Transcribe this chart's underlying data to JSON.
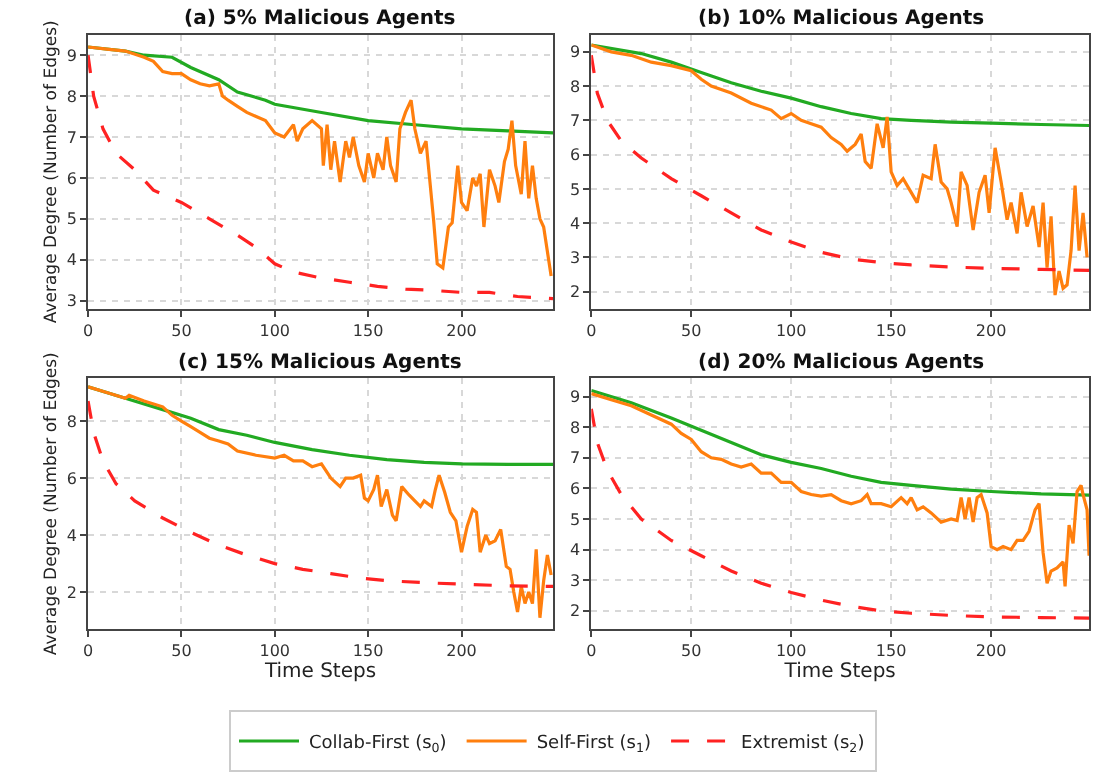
{
  "chart_data": [
    {
      "type": "line",
      "title": "(a) 5% Malicious Agents",
      "ylabel": "Average Degree (Number of Edges)",
      "xlim": [
        0,
        249
      ],
      "xticks": [
        0,
        50,
        100,
        150,
        200
      ],
      "ylim": [
        2.8,
        9.5
      ],
      "yticks": [
        3,
        4,
        5,
        6,
        7,
        8,
        9
      ],
      "grid": true,
      "legend": "bottom",
      "marker": "none",
      "series": [
        {
          "name": "Collab-First (s$_{0}$)",
          "color": "#22aa22",
          "line_style": "solid",
          "x": [
            0,
            20,
            30,
            45,
            55,
            70,
            80,
            95,
            100,
            125,
            150,
            175,
            200,
            225,
            249
          ],
          "values": [
            9.2,
            9.1,
            9.0,
            8.95,
            8.7,
            8.4,
            8.1,
            7.9,
            7.8,
            7.6,
            7.4,
            7.3,
            7.2,
            7.15,
            7.1
          ]
        },
        {
          "name": "Self-First (s$_{1}$)",
          "color": "#ff7f0e",
          "line_style": "solid",
          "x": [
            0,
            10,
            20,
            30,
            35,
            40,
            45,
            50,
            55,
            60,
            65,
            70,
            72,
            75,
            80,
            85,
            90,
            95,
            100,
            105,
            110,
            112,
            115,
            120,
            125,
            126,
            128,
            130,
            132,
            135,
            138,
            140,
            142,
            145,
            148,
            150,
            153,
            155,
            158,
            160,
            162,
            165,
            167,
            170,
            173,
            175,
            178,
            181,
            185,
            187,
            190,
            193,
            195,
            198,
            200,
            203,
            206,
            208,
            210,
            212,
            215,
            218,
            220,
            223,
            225,
            227,
            229,
            232,
            234,
            236,
            238,
            240,
            242,
            244,
            246,
            248
          ],
          "values": [
            9.2,
            9.15,
            9.1,
            8.95,
            8.85,
            8.6,
            8.55,
            8.55,
            8.4,
            8.3,
            8.25,
            8.3,
            8.0,
            7.9,
            7.75,
            7.6,
            7.5,
            7.4,
            7.1,
            7.0,
            7.3,
            6.9,
            7.2,
            7.4,
            7.2,
            6.3,
            7.3,
            6.2,
            6.9,
            5.9,
            6.9,
            6.5,
            7.0,
            6.3,
            5.9,
            6.6,
            6.0,
            6.6,
            6.2,
            7.0,
            6.3,
            5.9,
            7.2,
            7.6,
            7.9,
            7.2,
            6.6,
            6.9,
            5.0,
            3.9,
            3.8,
            4.8,
            4.9,
            6.3,
            5.4,
            5.2,
            6.0,
            5.8,
            6.1,
            4.8,
            6.2,
            5.8,
            5.4,
            6.4,
            6.7,
            7.4,
            6.3,
            5.6,
            6.9,
            5.5,
            6.3,
            5.5,
            5.0,
            4.8,
            4.2,
            3.6
          ]
        },
        {
          "name": "Extremist (s$_{2}$)",
          "color": "#ff2222",
          "line_style": "dashed",
          "x": [
            0,
            3,
            8,
            15,
            25,
            35,
            50,
            65,
            80,
            90,
            100,
            110,
            125,
            140,
            155,
            170,
            185,
            200,
            215,
            230,
            249
          ],
          "values": [
            9.0,
            8.0,
            7.2,
            6.6,
            6.2,
            5.7,
            5.4,
            5.0,
            4.6,
            4.3,
            3.9,
            3.7,
            3.55,
            3.45,
            3.35,
            3.28,
            3.25,
            3.2,
            3.2,
            3.1,
            3.05
          ]
        }
      ]
    },
    {
      "type": "line",
      "title": "(b) 10% Malicious Agents",
      "xlim": [
        0,
        249
      ],
      "xticks": [
        0,
        50,
        100,
        150,
        200
      ],
      "ylim": [
        1.5,
        9.5
      ],
      "yticks": [
        2,
        3,
        4,
        5,
        6,
        7,
        8,
        9
      ],
      "grid": true,
      "legend": "bottom",
      "marker": "none",
      "series": [
        {
          "name": "Collab-First (s$_{0}$)",
          "color": "#22aa22",
          "line_style": "solid",
          "x": [
            0,
            25,
            40,
            55,
            70,
            85,
            100,
            115,
            130,
            145,
            160,
            180,
            200,
            225,
            249
          ],
          "values": [
            9.2,
            8.95,
            8.7,
            8.4,
            8.1,
            7.85,
            7.65,
            7.4,
            7.2,
            7.05,
            7.0,
            6.95,
            6.92,
            6.88,
            6.85
          ]
        },
        {
          "name": "Self-First (s$_{1}$)",
          "color": "#ff7f0e",
          "line_style": "solid",
          "x": [
            0,
            10,
            20,
            30,
            40,
            50,
            55,
            60,
            70,
            80,
            90,
            95,
            100,
            105,
            110,
            115,
            120,
            125,
            128,
            132,
            135,
            137,
            140,
            143,
            146,
            148,
            150,
            153,
            156,
            160,
            163,
            166,
            170,
            172,
            175,
            178,
            180,
            183,
            185,
            188,
            191,
            194,
            197,
            199,
            202,
            205,
            208,
            210,
            213,
            215,
            218,
            221,
            224,
            226,
            228,
            230,
            232,
            234,
            236,
            238,
            240,
            242,
            244,
            246,
            248
          ],
          "values": [
            9.2,
            9.0,
            8.9,
            8.7,
            8.6,
            8.45,
            8.2,
            8.0,
            7.8,
            7.5,
            7.3,
            7.05,
            7.2,
            7.0,
            6.9,
            6.8,
            6.5,
            6.3,
            6.1,
            6.3,
            6.6,
            5.8,
            5.6,
            6.9,
            6.2,
            7.1,
            5.5,
            5.1,
            5.3,
            4.9,
            4.6,
            5.4,
            5.3,
            6.3,
            5.2,
            5.0,
            4.6,
            3.9,
            5.5,
            5.1,
            3.8,
            4.9,
            5.4,
            4.3,
            6.2,
            5.2,
            4.1,
            4.6,
            3.7,
            4.9,
            3.9,
            4.5,
            3.3,
            4.6,
            2.7,
            4.2,
            1.9,
            2.6,
            2.1,
            2.2,
            3.2,
            5.1,
            3.2,
            4.3,
            3.0
          ]
        },
        {
          "name": "Extremist (s$_{2}$)",
          "color": "#ff2222",
          "line_style": "dashed",
          "x": [
            0,
            3,
            8,
            15,
            25,
            40,
            55,
            70,
            85,
            100,
            115,
            130,
            145,
            160,
            180,
            200,
            225,
            249
          ],
          "values": [
            8.9,
            7.8,
            7.0,
            6.4,
            5.9,
            5.3,
            4.8,
            4.3,
            3.8,
            3.45,
            3.15,
            2.95,
            2.85,
            2.78,
            2.72,
            2.68,
            2.65,
            2.62
          ]
        }
      ]
    },
    {
      "type": "line",
      "title": "(c) 15% Malicious Agents",
      "xlabel": "Time Steps",
      "ylabel": "Average Degree (Number of Edges)",
      "xlim": [
        0,
        249
      ],
      "xticks": [
        0,
        50,
        100,
        150,
        200
      ],
      "ylim": [
        0.7,
        9.5
      ],
      "yticks": [
        2,
        4,
        6,
        8
      ],
      "grid": true,
      "legend": "bottom",
      "marker": "none",
      "series": [
        {
          "name": "Collab-First (s$_{0}$)",
          "color": "#22aa22",
          "line_style": "solid",
          "x": [
            0,
            20,
            40,
            55,
            70,
            85,
            100,
            120,
            140,
            160,
            180,
            200,
            225,
            249
          ],
          "values": [
            9.2,
            8.8,
            8.4,
            8.1,
            7.7,
            7.5,
            7.25,
            7.0,
            6.8,
            6.65,
            6.55,
            6.5,
            6.48,
            6.48
          ]
        },
        {
          "name": "Self-First (s$_{1}$)",
          "color": "#ff7f0e",
          "line_style": "solid",
          "x": [
            0,
            10,
            20,
            22,
            30,
            40,
            45,
            50,
            55,
            60,
            65,
            70,
            75,
            80,
            90,
            100,
            105,
            110,
            115,
            120,
            125,
            128,
            130,
            135,
            138,
            142,
            146,
            148,
            150,
            153,
            155,
            157,
            160,
            163,
            165,
            168,
            172,
            175,
            178,
            180,
            184,
            186,
            188,
            191,
            194,
            197,
            200,
            203,
            206,
            208,
            210,
            213,
            215,
            218,
            221,
            224,
            226,
            228,
            230,
            232,
            234,
            236,
            238,
            240,
            242,
            244,
            246,
            248
          ],
          "values": [
            9.2,
            9.0,
            8.8,
            8.9,
            8.7,
            8.5,
            8.2,
            8.0,
            7.8,
            7.6,
            7.4,
            7.3,
            7.2,
            6.95,
            6.8,
            6.7,
            6.8,
            6.6,
            6.6,
            6.4,
            6.5,
            6.2,
            6.0,
            5.7,
            6.0,
            6.0,
            6.1,
            5.3,
            5.2,
            5.6,
            6.1,
            5.0,
            5.6,
            4.7,
            4.5,
            5.7,
            5.4,
            5.2,
            5.0,
            5.2,
            5.0,
            5.6,
            6.1,
            5.5,
            4.8,
            4.5,
            3.4,
            4.3,
            4.9,
            4.8,
            3.4,
            4.0,
            3.7,
            3.8,
            4.2,
            2.9,
            2.8,
            2.0,
            1.3,
            2.2,
            1.6,
            2.0,
            1.6,
            3.5,
            1.1,
            2.4,
            3.3,
            2.6
          ]
        },
        {
          "name": "Extremist (s$_{2}$)",
          "color": "#ff2222",
          "line_style": "dashed",
          "x": [
            0,
            3,
            8,
            15,
            25,
            40,
            55,
            70,
            85,
            100,
            115,
            130,
            145,
            160,
            180,
            200,
            225,
            249
          ],
          "values": [
            8.7,
            7.6,
            6.6,
            5.8,
            5.2,
            4.6,
            4.1,
            3.65,
            3.3,
            3.0,
            2.8,
            2.65,
            2.5,
            2.4,
            2.33,
            2.28,
            2.22,
            2.2
          ]
        }
      ]
    },
    {
      "type": "line",
      "title": "(d) 20% Malicious Agents",
      "xlabel": "Time Steps",
      "xlim": [
        0,
        249
      ],
      "xticks": [
        0,
        50,
        100,
        150,
        200
      ],
      "ylim": [
        1.4,
        9.6
      ],
      "yticks": [
        2,
        3,
        4,
        5,
        6,
        7,
        8,
        9
      ],
      "grid": true,
      "legend": "bottom",
      "marker": "none",
      "series": [
        {
          "name": "Collab-First (s$_{0}$)",
          "color": "#22aa22",
          "line_style": "solid",
          "x": [
            0,
            20,
            40,
            55,
            70,
            85,
            100,
            115,
            130,
            145,
            160,
            180,
            200,
            225,
            249
          ],
          "values": [
            9.2,
            8.8,
            8.3,
            7.9,
            7.5,
            7.1,
            6.85,
            6.65,
            6.4,
            6.2,
            6.1,
            5.98,
            5.9,
            5.82,
            5.78
          ]
        },
        {
          "name": "Self-First (s$_{1}$)",
          "color": "#ff7f0e",
          "line_style": "solid",
          "x": [
            0,
            10,
            20,
            30,
            40,
            45,
            50,
            55,
            60,
            65,
            70,
            75,
            80,
            85,
            90,
            95,
            100,
            105,
            110,
            115,
            120,
            125,
            130,
            135,
            138,
            140,
            145,
            150,
            155,
            158,
            160,
            163,
            166,
            170,
            175,
            180,
            183,
            185,
            187,
            189,
            191,
            193,
            195,
            198,
            200,
            203,
            206,
            210,
            213,
            216,
            219,
            222,
            224,
            226,
            228,
            230,
            233,
            236,
            237,
            239,
            241,
            243,
            245,
            246,
            248,
            249
          ],
          "values": [
            9.1,
            8.9,
            8.7,
            8.4,
            8.1,
            7.8,
            7.6,
            7.2,
            7.0,
            6.95,
            6.8,
            6.7,
            6.8,
            6.5,
            6.5,
            6.2,
            6.2,
            5.9,
            5.8,
            5.75,
            5.8,
            5.6,
            5.5,
            5.6,
            5.8,
            5.5,
            5.5,
            5.4,
            5.7,
            5.5,
            5.7,
            5.3,
            5.4,
            5.2,
            4.9,
            5.0,
            4.95,
            5.7,
            5.0,
            5.7,
            4.9,
            5.7,
            5.8,
            5.2,
            4.1,
            4.0,
            4.1,
            4.0,
            4.3,
            4.3,
            4.6,
            5.3,
            5.5,
            3.9,
            2.9,
            3.3,
            3.4,
            3.6,
            2.8,
            4.8,
            4.2,
            5.9,
            6.1,
            5.8,
            5.3,
            3.8
          ]
        },
        {
          "name": "Extremist (s$_{2}$)",
          "color": "#ff2222",
          "line_style": "dashed",
          "x": [
            0,
            3,
            8,
            15,
            25,
            40,
            55,
            70,
            85,
            100,
            115,
            130,
            145,
            160,
            180,
            200,
            225,
            249
          ],
          "values": [
            8.6,
            7.5,
            6.6,
            5.8,
            5.0,
            4.3,
            3.8,
            3.3,
            2.9,
            2.6,
            2.35,
            2.15,
            2.0,
            1.92,
            1.85,
            1.8,
            1.78,
            1.76
          ]
        }
      ]
    }
  ]
}
